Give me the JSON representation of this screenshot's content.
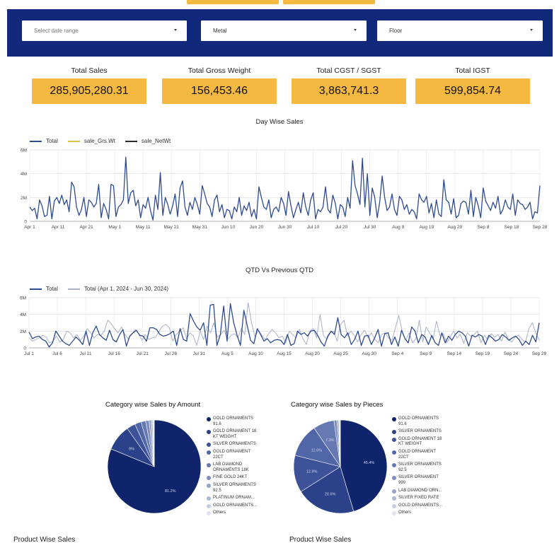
{
  "filters": {
    "date": {
      "placeholder": "Select date range"
    },
    "metal": {
      "value": "Metal"
    },
    "floor": {
      "value": "Floor"
    }
  },
  "kpis": [
    {
      "label": "Total Sales",
      "value": "285,905,280.31"
    },
    {
      "label": "Total Gross Weight",
      "value": "156,453.46"
    },
    {
      "label": "Total CGST / SGST",
      "value": "3,863,741.3"
    },
    {
      "label": "Total IGST",
      "value": "599,854.74"
    }
  ],
  "colors": {
    "brand_navy": "#12287a",
    "kpi_yellow": "#f5b942",
    "series_total": "#2f4b8f",
    "series_grs": "#d9c34a",
    "series_net": "#2b2b2b",
    "series_prev": "#aab0c8"
  },
  "chart_data": [
    {
      "type": "line",
      "title": "Day Wise Sales",
      "series": [
        {
          "name": "Total",
          "values": [
            1.2,
            0.9,
            1.1,
            0.2,
            1.8,
            1.3,
            0.4,
            0.5,
            2.1,
            0.2,
            1.7,
            2.0,
            1.5,
            2.2,
            1.4,
            1.8,
            0.8,
            3.3,
            2.9,
            1.2,
            0.5,
            1.0,
            2.0,
            0.4,
            1.8,
            1.6,
            1.2,
            1.5,
            3.1,
            0.3,
            1.5,
            1.0,
            0.2,
            3.1,
            3.0,
            0.4,
            1.2,
            1.4,
            1.8,
            5.4,
            1.5,
            2.4,
            2.6,
            1.3,
            1.8,
            0.3,
            1.4,
            1.1,
            2.0,
            0.9,
            0.1,
            2.2,
            1.0,
            4.1,
            0.5,
            2.0,
            1.4,
            0.6,
            1.3,
            2.3,
            0.4,
            2.8,
            3.4,
            1.2,
            0.5,
            1.6,
            1.0,
            2.0,
            1.4,
            0.6,
            3.0,
            2.3,
            1.5,
            1.2,
            0.4,
            1.8,
            2.2,
            0.8,
            1.4,
            0.3,
            1.0,
            0.9,
            0.2,
            1.2,
            0.8,
            2.0,
            0.5,
            1.3,
            0.9,
            1.6,
            0.4,
            1.0,
            0.2,
            2.9,
            2.0,
            1.2,
            1.0,
            1.8,
            0.3,
            1.0,
            1.2,
            0.8,
            2.0,
            1.5,
            0.5,
            2.5,
            1.3,
            0.3,
            1.0,
            1.6,
            0.7,
            2.4,
            1.2,
            0.5,
            1.8,
            2.4,
            0.2,
            1.0,
            0.8,
            1.2,
            2.9,
            1.0,
            0.7,
            2.2,
            1.5,
            0.2,
            1.4,
            1.2,
            0.4,
            2.0,
            1.1,
            5.1,
            3.0,
            2.3,
            1.4,
            5.3,
            1.2,
            4.0,
            0.5,
            2.8,
            2.0,
            0.3,
            1.6,
            3.8,
            2.0,
            0.9,
            1.2,
            2.3,
            1.0,
            0.5,
            2.1,
            1.8,
            1.0,
            1.4,
            0.6,
            1.0,
            0.8,
            0.2,
            2.3,
            1.8,
            1.6,
            2.1,
            0.7,
            1.5,
            0.3,
            1.8,
            0.6,
            0.4,
            3.5,
            1.8,
            1.6,
            0.6,
            1.9,
            0.3,
            0.5,
            1.5,
            1.7,
            1.6,
            0.6,
            2.6,
            0.4,
            2.0,
            1.3,
            0.3,
            2.8,
            1.7,
            1.3,
            0.9,
            1.6,
            1.1,
            2.1,
            0.6,
            1.0,
            1.8,
            1.2,
            1.0,
            2.3,
            0.5,
            1.8,
            1.5,
            1.4,
            1.0,
            1.2,
            1.6,
            0.2,
            0.8,
            0.7,
            3.0
          ]
        },
        {
          "name": "sale_Grs.Wt",
          "values": []
        },
        {
          "name": "sale_NetWt",
          "values": []
        }
      ],
      "x_tick_labels": [
        "Apr 1",
        "Apr 11",
        "Apr 21",
        "May 1",
        "May 11",
        "May 21",
        "May 31",
        "Jun 10",
        "Jun 20",
        "Jun 30",
        "Jul 10",
        "Jul 20",
        "Jul 30",
        "Aug 9",
        "Aug 19",
        "Aug 29",
        "Sep 8",
        "Sep 18",
        "Sep 28"
      ],
      "y_tick_labels": [
        "6M",
        "4M",
        "2M",
        "0"
      ],
      "ylim": [
        0,
        6
      ],
      "grid": true,
      "legend_position": "top-left"
    },
    {
      "type": "line",
      "title": "QTD Vs Previous QTD",
      "series": [
        {
          "name": "Total",
          "values": [
            1.9,
            1.1,
            1.3,
            1.4,
            1.0,
            0.8,
            0.1,
            0.6,
            2.0,
            1.4,
            0.8,
            0.5,
            0.3,
            0.8,
            1.3,
            0.9,
            0.4,
            2.0,
            0.3,
            1.8,
            2.6,
            1.6,
            1.2,
            0.9,
            2.1,
            1.0,
            0.7,
            1.6,
            2.2,
            0.2,
            1.4,
            1.8,
            2.1,
            1.5,
            1.4,
            0.8,
            2.4,
            2.4,
            2.2,
            1.6,
            1.4,
            1.5,
            1.7,
            2.0,
            0.3,
            2.3,
            1.0,
            0.8,
            4.1,
            3.2,
            2.5,
            2.1,
            3.0,
            0.3,
            5.1,
            5.2,
            0.3,
            1.6,
            5.0,
            0.8,
            5.3,
            3.0,
            1.5,
            0.3,
            4.5,
            2.7,
            0.9,
            0.5,
            2.3,
            1.6,
            0.8,
            1.1,
            0.6,
            0.9,
            1.0,
            0.9,
            0.4,
            1.6,
            0.3,
            0.5,
            2.0,
            1.6,
            1.8,
            1.4,
            2.0,
            2.1,
            1.5,
            0.7,
            0.2,
            1.4,
            2.0,
            1.6,
            3.6,
            1.6,
            1.2,
            1.8,
            0.4,
            1.0,
            2.0,
            0.3,
            1.4,
            1.5,
            0.4,
            1.2,
            2.2,
            0.2,
            1.7,
            1.8,
            0.4,
            1.3,
            0.2,
            2.1,
            1.1,
            0.6,
            2.5,
            2.0,
            0.6,
            1.6,
            1.3,
            0.4,
            1.5,
            0.6,
            0.3,
            1.8,
            0.6,
            1.4,
            0.9,
            1.6,
            2.0,
            1.8,
            1.4,
            0.2,
            1.5,
            1.3,
            1.6,
            1.4,
            0.4,
            1.5,
            1.2,
            0.8,
            1.0,
            1.6,
            1.3,
            0.9,
            1.2,
            1.4,
            1.0,
            0.3,
            0.8,
            0.4,
            1.5,
            0.7,
            3.0
          ]
        },
        {
          "name": "Total (Apr 1, 2024 - Jun 30, 2024)",
          "values": [
            1.2,
            0.8,
            1.0,
            1.2,
            1.5,
            1.3,
            0.6,
            0.8,
            1.4,
            0.7,
            1.0,
            2.0,
            1.8,
            1.2,
            1.6,
            0.9,
            1.4,
            2.3,
            1.8,
            1.2,
            1.6,
            1.5,
            2.0,
            3.3,
            2.9,
            2.3,
            1.8,
            2.5,
            1.6,
            1.1,
            1.6,
            2.2,
            1.7,
            0.9,
            1.6,
            1.0,
            1.2,
            1.3,
            2.0,
            2.6,
            2.8,
            2.4,
            0.8,
            1.6,
            2.0,
            2.4,
            1.1,
            1.8,
            1.4,
            0.3,
            2.0,
            1.0,
            2.6,
            1.8,
            3.0,
            1.3,
            1.6,
            2.1,
            1.0,
            1.5,
            1.7,
            1.2,
            2.3,
            1.6,
            5.4,
            3.0,
            1.3,
            2.1,
            1.5,
            1.0,
            1.7,
            2.2,
            1.8,
            1.2,
            1.4,
            0.6,
            2.0,
            1.6,
            1.2,
            2.2,
            1.1,
            0.4,
            2.0,
            2.3,
            1.2,
            4.0,
            1.5,
            1.0,
            1.8,
            2.0,
            0.8,
            2.8,
            3.3,
            1.4,
            2.0,
            1.5,
            0.7,
            1.6,
            2.1,
            1.2,
            1.8,
            1.0,
            0.6,
            1.6,
            1.8,
            1.2,
            0.9,
            2.4,
            3.9,
            2.0,
            0.9,
            1.8,
            0.6,
            1.1,
            3.3,
            0.7,
            2.5,
            1.8,
            1.0,
            3.2,
            1.5,
            1.7,
            0.6,
            1.3,
            2.0,
            1.2,
            1.6,
            0.5,
            1.8,
            1.4,
            1.6,
            2.0,
            0.6,
            1.5,
            1.0,
            1.7,
            1.3,
            1.6,
            0.8,
            1.9,
            1.0,
            0.7,
            1.3,
            1.5,
            1.0,
            0.7,
            2.3,
            3.0,
            1.8,
            0.9
          ]
        }
      ],
      "x_tick_labels": [
        "Jul 1",
        "Jul 6",
        "Jul 11",
        "Jul 16",
        "Jul 21",
        "Jul 26",
        "Jul 31",
        "Aug 5",
        "Aug 10",
        "Aug 15",
        "Aug 20",
        "Aug 25",
        "Aug 30",
        "Sep 4",
        "Sep 9",
        "Sep 14",
        "Sep 19",
        "Sep 24",
        "Sep 29"
      ],
      "y_tick_labels": [
        "6M",
        "4M",
        "2M",
        "0"
      ],
      "ylim": [
        0,
        6
      ],
      "grid": true,
      "legend_position": "top-left"
    },
    {
      "type": "pie",
      "title": "Category wise Sales by Amount",
      "slices": [
        {
          "name": "GOLD ORNAMENTS 91.6",
          "value": 81.2,
          "label": "81.2%",
          "color": "#10246b"
        },
        {
          "name": "GOLD ORNAMENT 18 KT WEIGHT",
          "value": 9.0,
          "label": "9%",
          "color": "#2b418a"
        },
        {
          "name": "SILVER ORNAMENTS",
          "value": 3.0,
          "label": "",
          "color": "#3d5299"
        },
        {
          "name": "GOLD ORNAMENT 22CT",
          "value": 2.2,
          "label": "",
          "color": "#5166a6"
        },
        {
          "name": "LAB DIAMOND ORNAMENTS 18K",
          "value": 1.6,
          "label": "",
          "color": "#6679b2"
        },
        {
          "name": "FINE GOLD 24KT",
          "value": 1.2,
          "label": "",
          "color": "#7d8dbf"
        },
        {
          "name": "SILVER ORNAMENTS 92.5",
          "value": 0.8,
          "label": "",
          "color": "#96a3cb"
        },
        {
          "name": "PLATINUM ORNAM...",
          "value": 0.5,
          "label": "",
          "color": "#aeb9d8"
        },
        {
          "name": "GOLD ORNAMENTS...",
          "value": 0.3,
          "label": "",
          "color": "#c6cee3"
        },
        {
          "name": "Others",
          "value": 0.2,
          "label": "",
          "color": "#dfe3ee"
        }
      ]
    },
    {
      "type": "pie",
      "title": "Category wise Sales by Pieces",
      "slices": [
        {
          "name": "GOLD ORNAMENTS 91.6",
          "value": 45.4,
          "label": "45.4%",
          "color": "#10246b"
        },
        {
          "name": "SILVER ORNAMENTS",
          "value": 20.6,
          "label": "20.6%",
          "color": "#2b418a"
        },
        {
          "name": "GOLD ORNAMENT 18 KT WEIGHT",
          "value": 12.9,
          "label": "12.9%",
          "color": "#3d5299"
        },
        {
          "name": "GOLD ORNAMENT 22CT",
          "value": 11.6,
          "label": "11.6%",
          "color": "#5166a6"
        },
        {
          "name": "SILVER ORNAMENTS 92.5",
          "value": 7.3,
          "label": "7.3%",
          "color": "#6679b2"
        },
        {
          "name": "SILVER ORNAMENT 999",
          "value": 1.0,
          "label": "",
          "color": "#7d8dbf"
        },
        {
          "name": "LAB DIAMOND ORN...",
          "value": 0.6,
          "label": "",
          "color": "#96a3cb"
        },
        {
          "name": "SILVER FIXED RATE",
          "value": 0.3,
          "label": "",
          "color": "#aeb9d8"
        },
        {
          "name": "GOLD ORNAMENTS...",
          "value": 0.2,
          "label": "",
          "color": "#c6cee3"
        },
        {
          "name": "Others",
          "value": 0.1,
          "label": "",
          "color": "#dfe3ee"
        }
      ]
    }
  ],
  "sections": {
    "left": "Product Wise Sales",
    "right": "Product Wise Sales"
  }
}
